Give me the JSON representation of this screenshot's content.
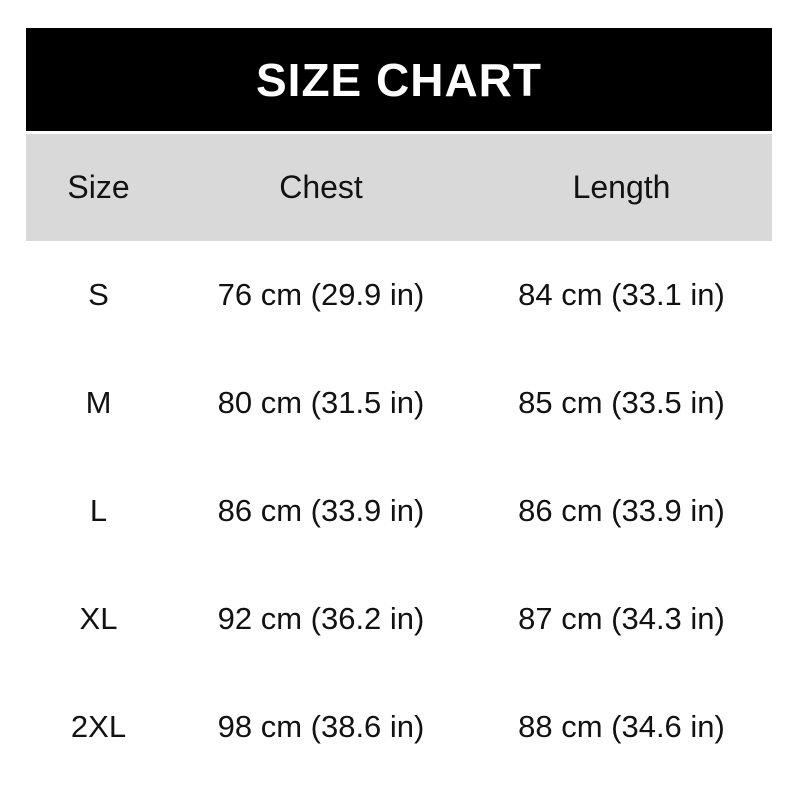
{
  "banner": {
    "title": "SIZE CHART"
  },
  "table": {
    "columns": {
      "size": "Size",
      "chest": "Chest",
      "length": "Length"
    },
    "rows": [
      {
        "size": "S",
        "chest": "76 cm (29.9 in)",
        "length": "84 cm (33.1 in)"
      },
      {
        "size": "M",
        "chest": "80 cm (31.5 in)",
        "length": "85 cm (33.5 in)"
      },
      {
        "size": "L",
        "chest": "86 cm (33.9 in)",
        "length": "86 cm (33.9 in)"
      },
      {
        "size": "XL",
        "chest": "92 cm (36.2 in)",
        "length": "87 cm (34.3 in)"
      },
      {
        "size": "2XL",
        "chest": "98 cm (38.6 in)",
        "length": "88 cm (34.6 in)"
      }
    ]
  },
  "colors": {
    "banner_bg": "#000000",
    "banner_text": "#ffffff",
    "header_band_bg": "#d9d9d9",
    "row_bg": "#ffffff",
    "text": "#121212"
  },
  "chart_data": {
    "type": "table",
    "title": "SIZE CHART",
    "columns": [
      "Size",
      "Chest",
      "Length"
    ],
    "rows": [
      [
        "S",
        "76 cm (29.9 in)",
        "84 cm (33.1 in)"
      ],
      [
        "M",
        "80 cm (31.5 in)",
        "85 cm (33.5 in)"
      ],
      [
        "L",
        "86 cm (33.9 in)",
        "86 cm (33.9 in)"
      ],
      [
        "XL",
        "92 cm (36.2 in)",
        "87 cm (34.3 in)"
      ],
      [
        "2XL",
        "98 cm (38.6 in)",
        "88 cm (34.6 in)"
      ]
    ],
    "series_numeric": {
      "sizes": [
        "S",
        "M",
        "L",
        "XL",
        "2XL"
      ],
      "chest_cm": [
        76,
        80,
        86,
        92,
        98
      ],
      "chest_in": [
        29.9,
        31.5,
        33.9,
        36.2,
        38.6
      ],
      "length_cm": [
        84,
        85,
        86,
        87,
        88
      ],
      "length_in": [
        33.1,
        33.5,
        33.9,
        34.3,
        34.6
      ]
    }
  }
}
